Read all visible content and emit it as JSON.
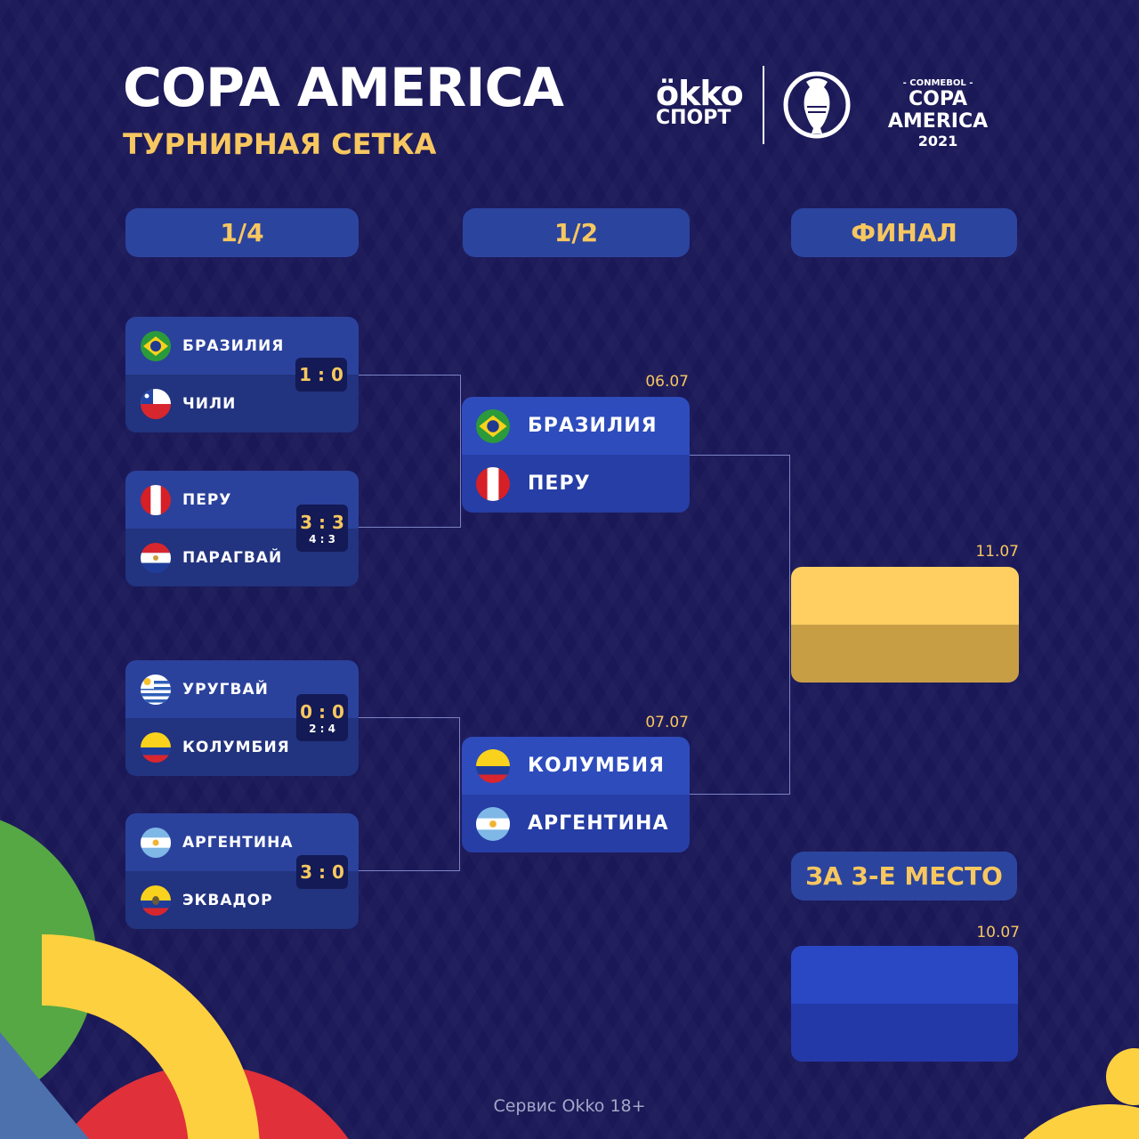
{
  "header": {
    "title": "COPA AMERICA",
    "subtitle": "ТУРНИРНАЯ СЕТКА",
    "okko_logo": {
      "line1": "ökko",
      "line2": "СПОРТ"
    },
    "copa_logo": {
      "line1": "- CONMEBOL -",
      "line2": "COPA AMERICA",
      "line3": "2021"
    }
  },
  "stages": {
    "quarter": "1/4",
    "semi": "1/2",
    "final": "ФИНАЛ",
    "third": "ЗА 3-Е МЕСТО"
  },
  "quarterfinals": [
    {
      "home": "БРАЗИЛИЯ",
      "away": "ЧИЛИ",
      "score": "1 : 0",
      "pens": ""
    },
    {
      "home": "ПЕРУ",
      "away": "ПАРАГВАЙ",
      "score": "3 : 3",
      "pens": "4 : 3"
    },
    {
      "home": "УРУГВАЙ",
      "away": "КОЛУМБИЯ",
      "score": "0 : 0",
      "pens": "2 : 4"
    },
    {
      "home": "АРГЕНТИНА",
      "away": "ЭКВАДОР",
      "score": "3 : 0",
      "pens": ""
    }
  ],
  "semifinals": [
    {
      "date": "06.07",
      "home": "БРАЗИЛИЯ",
      "away": "ПЕРУ"
    },
    {
      "date": "07.07",
      "home": "КОЛУМБИЯ",
      "away": "АРГЕНТИНА"
    }
  ],
  "final": {
    "date": "11.07"
  },
  "third_place": {
    "date": "10.07"
  },
  "footer": "Сервис Okko 18+",
  "colors": {
    "background": "#1b1858",
    "accent": "#f7c760",
    "card_top": "#2b429c",
    "card_bottom": "#22337f",
    "final_top": "#ffcf62",
    "final_bottom": "#c89e45",
    "third_top": "#2a48c4",
    "third_bottom": "#2339a8"
  }
}
